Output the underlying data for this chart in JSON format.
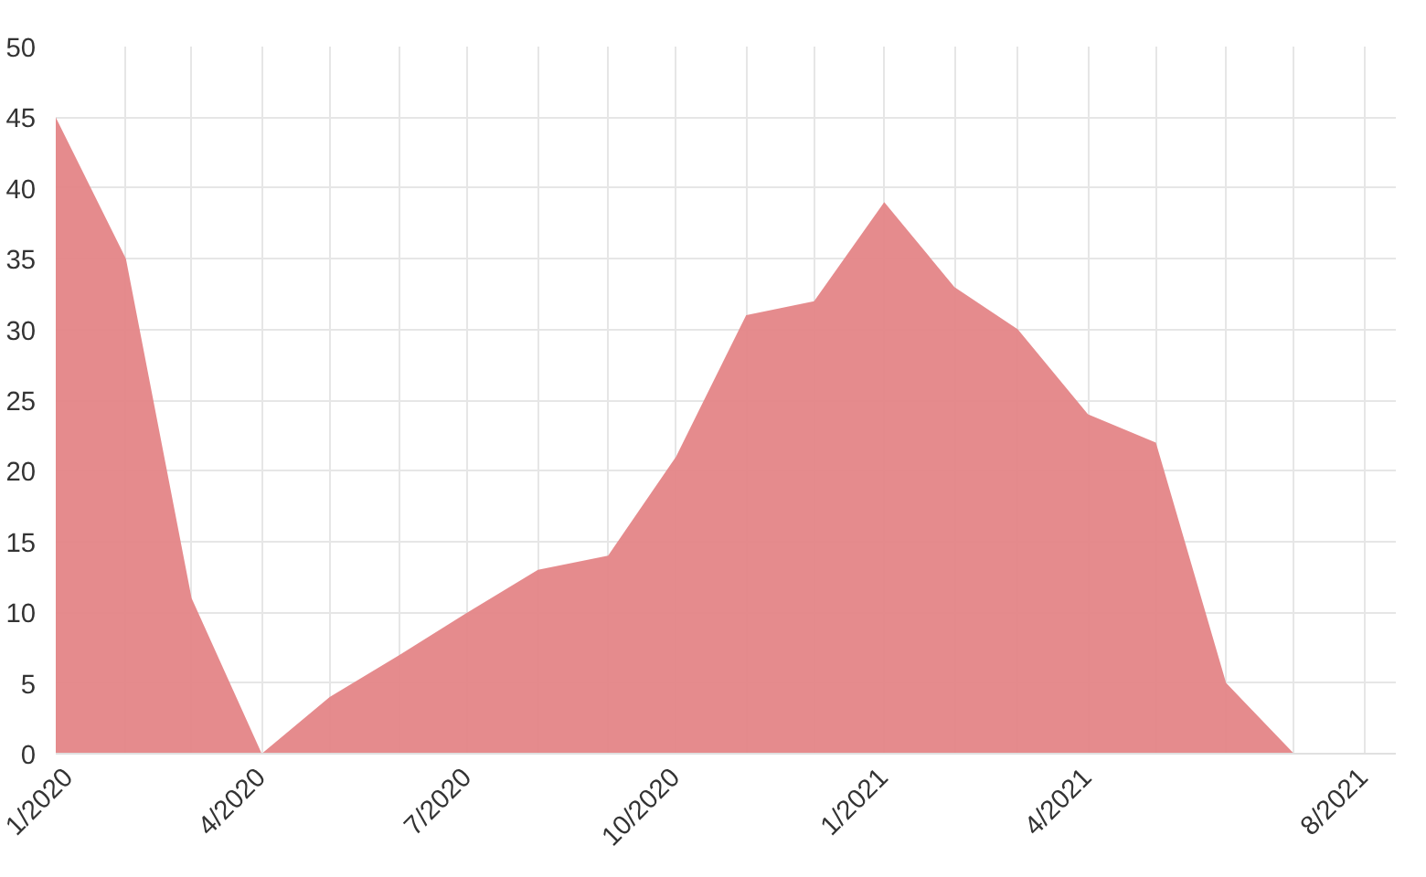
{
  "chart_data": {
    "type": "area",
    "x": [
      "2020-01",
      "2020-02",
      "2020-03",
      "2020-04",
      "2020-05",
      "2020-06",
      "2020-07",
      "2020-08",
      "2020-09",
      "2020-10",
      "2020-11",
      "2020-12",
      "2021-01",
      "2021-02",
      "2021-03",
      "2021-04",
      "2021-05",
      "2021-06",
      "2021-07"
    ],
    "series": [
      {
        "color": "#e48587",
        "values": [
          45,
          35,
          11,
          0,
          4,
          7,
          10,
          13,
          14,
          21,
          31,
          32,
          39,
          33,
          30,
          24,
          22,
          5,
          0
        ]
      }
    ],
    "xlim": [
      "2020-01",
      "2021-08-15"
    ],
    "xticks": [
      {
        "value": "2020-01",
        "label": "1/2020"
      },
      {
        "value": "2020-02",
        "label": null
      },
      {
        "value": "2020-03",
        "label": null
      },
      {
        "value": "2020-04",
        "label": "4/2020"
      },
      {
        "value": "2020-05",
        "label": null
      },
      {
        "value": "2020-06",
        "label": null
      },
      {
        "value": "2020-07",
        "label": "7/2020"
      },
      {
        "value": "2020-08",
        "label": null
      },
      {
        "value": "2020-09",
        "label": null
      },
      {
        "value": "2020-10",
        "label": "10/2020"
      },
      {
        "value": "2020-11",
        "label": null
      },
      {
        "value": "2020-12",
        "label": null
      },
      {
        "value": "2021-01",
        "label": "1/2021"
      },
      {
        "value": "2021-02",
        "label": null
      },
      {
        "value": "2021-03",
        "label": null
      },
      {
        "value": "2021-04",
        "label": "4/2021"
      },
      {
        "value": "2021-05",
        "label": null
      },
      {
        "value": "2021-06",
        "label": null
      },
      {
        "value": "2021-07",
        "label": null
      },
      {
        "value": "2021-08",
        "label": "8/2021"
      }
    ],
    "ylim": [
      0,
      50
    ],
    "yticks": [
      0,
      5,
      10,
      15,
      20,
      25,
      30,
      35,
      40,
      45,
      50
    ],
    "grid": true
  }
}
